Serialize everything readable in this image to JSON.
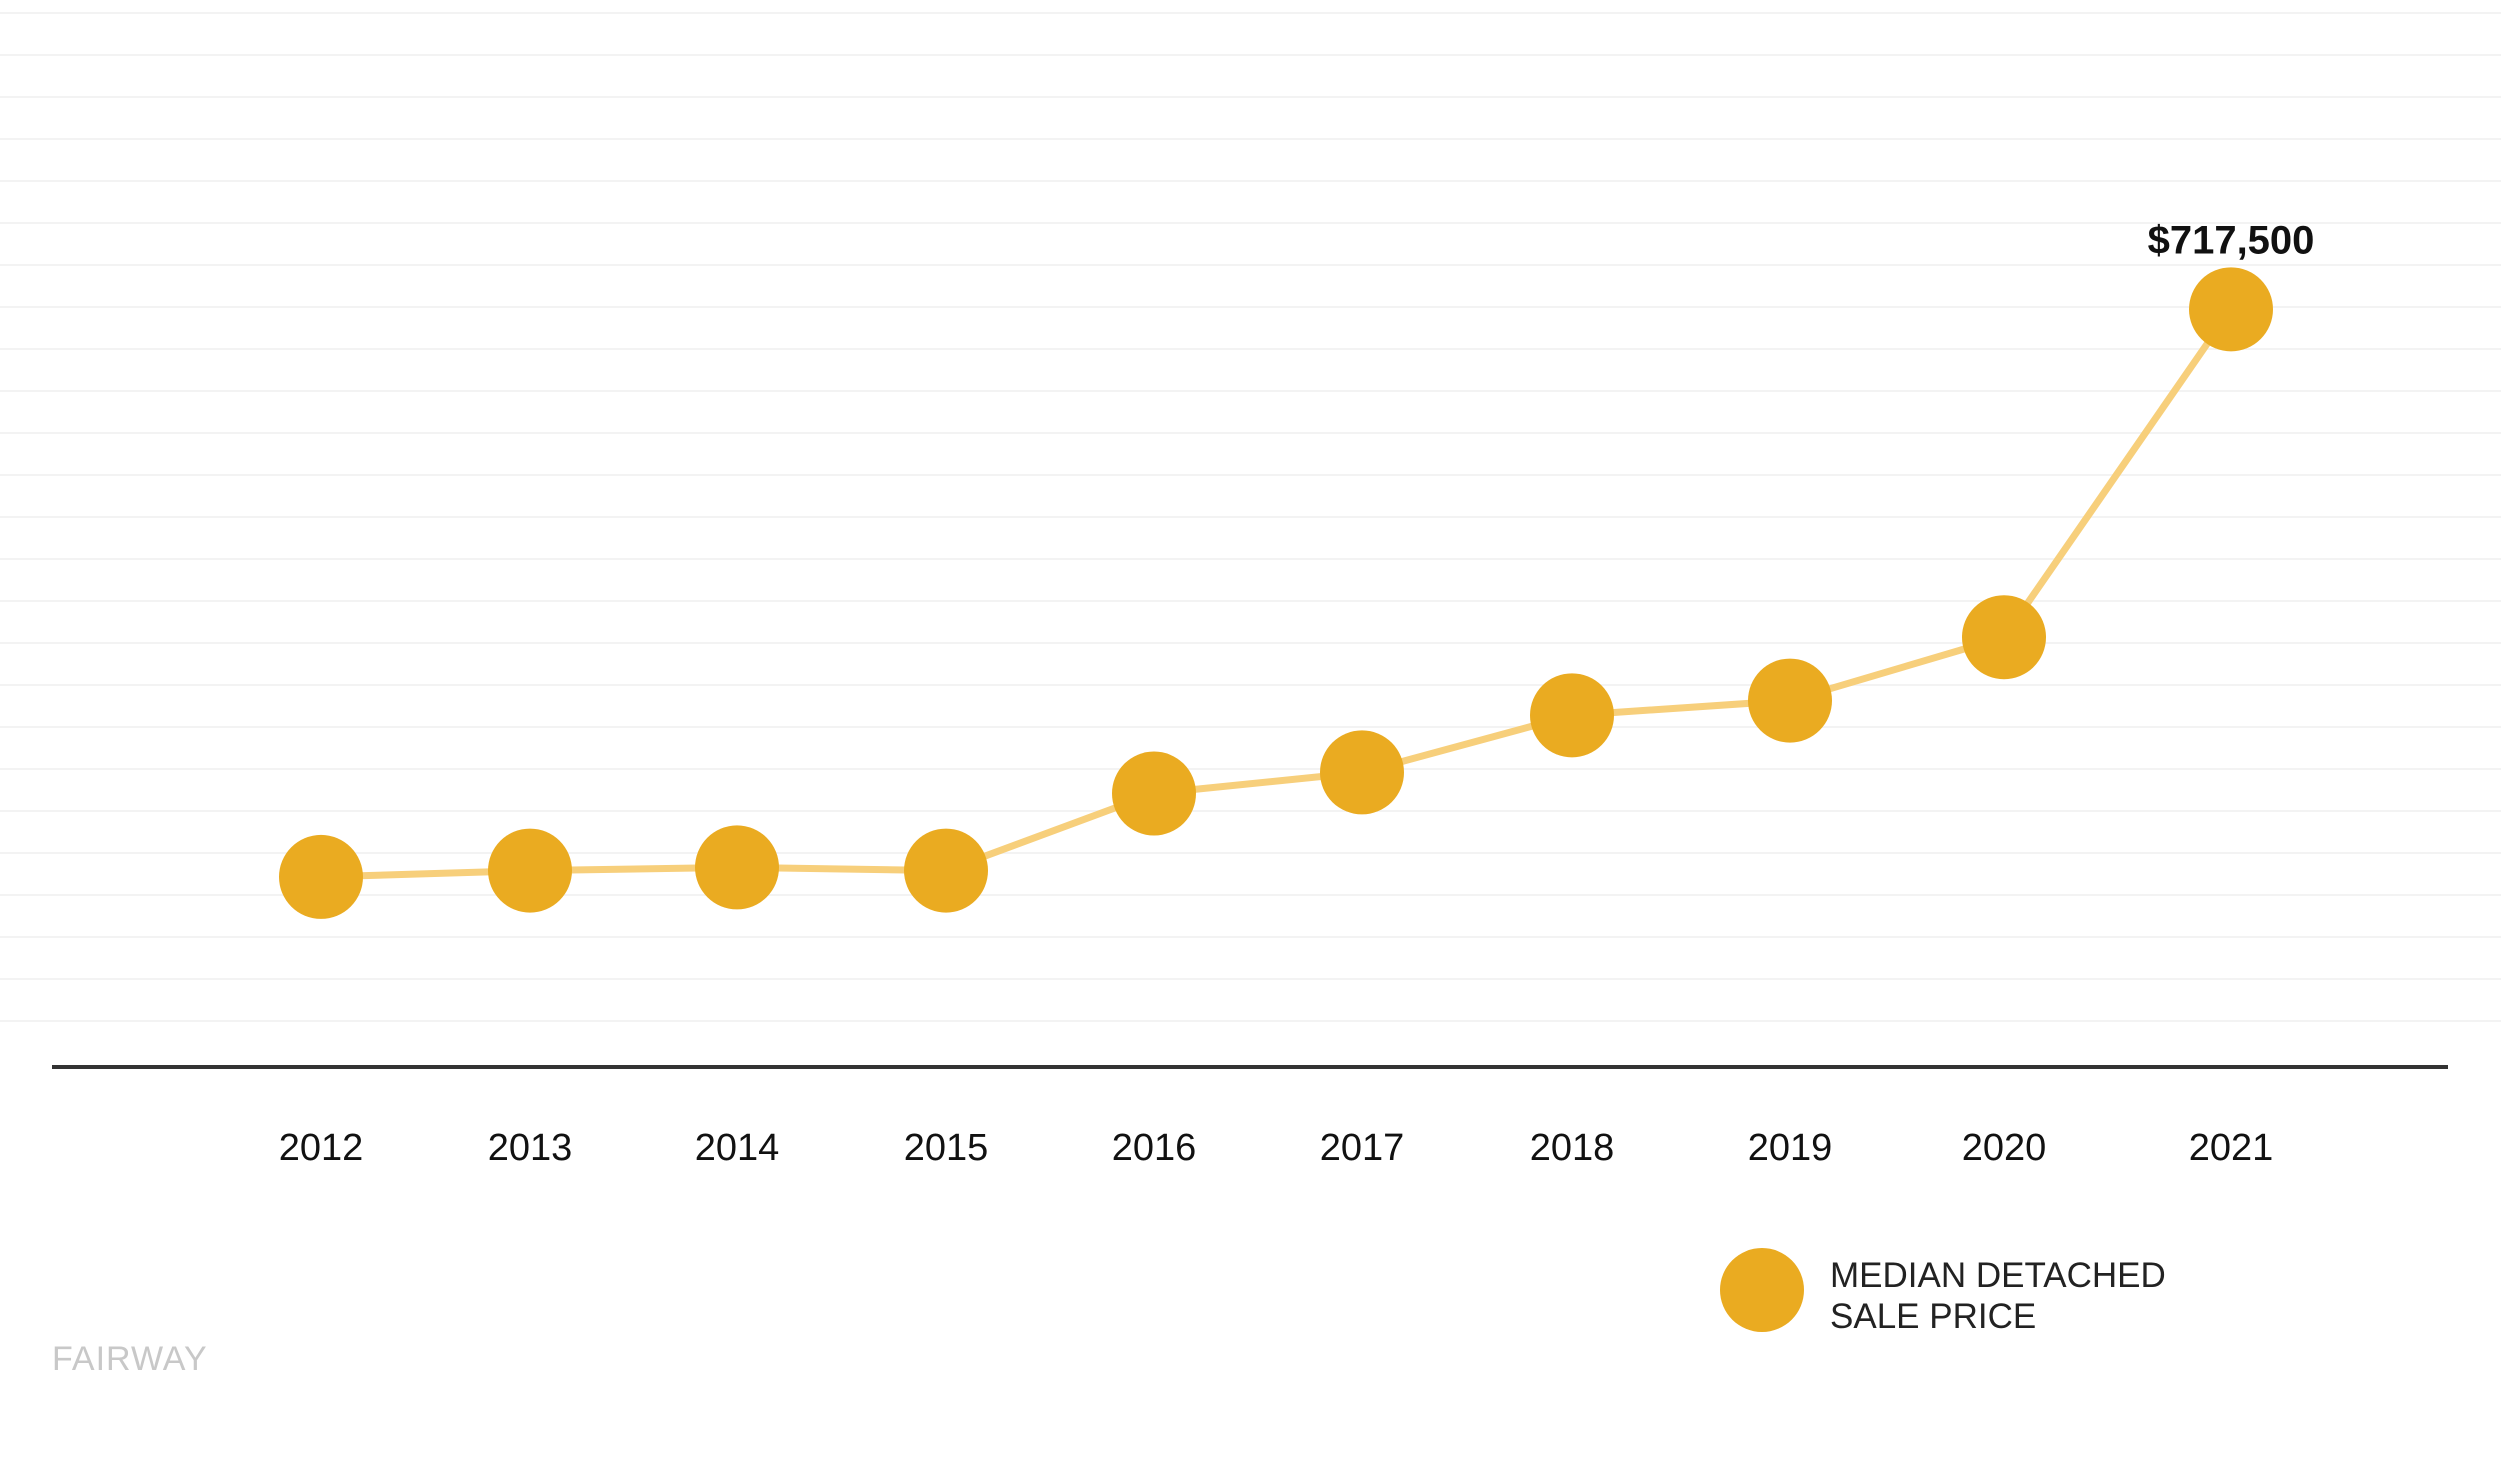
{
  "chart_data": {
    "type": "line",
    "title": "",
    "xlabel": "",
    "ylabel": "",
    "grid": true,
    "legend_position": "bottom-right",
    "categories": [
      "2012",
      "2013",
      "2014",
      "2015",
      "2016",
      "2017",
      "2018",
      "2019",
      "2020",
      "2021"
    ],
    "ylim": [
      0,
      1000000
    ],
    "series": [
      {
        "name": "MEDIAN DETACHED SALE PRICE",
        "values": [
          180000,
          186000,
          189000,
          186000,
          259000,
          279000,
          333000,
          347000,
          407000,
          717500
        ],
        "marker_color": "#eaab21",
        "line_color": "#f7cf7b"
      }
    ],
    "annotations": [
      {
        "category": "2021",
        "text": "$717,500"
      }
    ]
  },
  "legend": {
    "line1": "MEDIAN DETACHED",
    "line2": "SALE PRICE"
  },
  "watermark": "FAIRWAY"
}
